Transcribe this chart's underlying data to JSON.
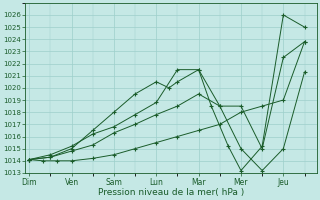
{
  "xlabel": "Pression niveau de la mer( hPa )",
  "background_color": "#c5e8e5",
  "grid_color": "#9ecfcb",
  "line_color": "#1a5c2a",
  "x_labels": [
    "Dim",
    "Ven",
    "Sam",
    "Lun",
    "Mar",
    "Mer",
    "Jeu"
  ],
  "ylim": [
    1013,
    1027
  ],
  "yticks": [
    1013,
    1014,
    1015,
    1016,
    1017,
    1018,
    1019,
    1020,
    1021,
    1022,
    1023,
    1024,
    1025,
    1026
  ],
  "series": [
    {
      "x": [
        0,
        0.33,
        0.66,
        1.0,
        1.5,
        2.0,
        2.5,
        3.0,
        3.5,
        4.0,
        4.5,
        5.0,
        5.5,
        6.0,
        6.5
      ],
      "y": [
        1014.1,
        1014.0,
        1014.0,
        1014.0,
        1014.2,
        1014.5,
        1015.0,
        1015.5,
        1016.0,
        1016.5,
        1017.0,
        1018.0,
        1018.5,
        1019.0,
        1023.8
      ]
    },
    {
      "x": [
        0,
        0.5,
        1.0,
        1.5,
        2.0,
        2.5,
        3.0,
        3.5,
        4.0,
        4.5,
        5.0,
        5.5,
        6.0,
        6.5
      ],
      "y": [
        1014.1,
        1014.3,
        1014.8,
        1015.3,
        1016.3,
        1017.0,
        1017.8,
        1018.5,
        1019.5,
        1018.5,
        1018.5,
        1015.0,
        1022.5,
        1023.8
      ]
    },
    {
      "x": [
        0,
        0.5,
        1.0,
        1.5,
        2.0,
        2.5,
        3.0,
        3.3,
        3.5,
        4.0,
        4.5,
        5.0,
        5.5,
        6.0,
        6.5
      ],
      "y": [
        1014.1,
        1014.3,
        1015.0,
        1016.5,
        1018.0,
        1019.5,
        1020.5,
        1020.0,
        1020.5,
        1021.5,
        1018.5,
        1015.0,
        1013.2,
        1015.0,
        1021.3
      ]
    },
    {
      "x": [
        0,
        0.5,
        1.0,
        1.5,
        2.0,
        2.5,
        3.0,
        3.5,
        4.0,
        4.3,
        4.7,
        5.0,
        5.5,
        6.0,
        6.5
      ],
      "y": [
        1014.1,
        1014.5,
        1015.2,
        1016.2,
        1016.8,
        1017.8,
        1018.8,
        1021.5,
        1021.5,
        1018.5,
        1015.2,
        1013.2,
        1015.2,
        1026.0,
        1025.0
      ]
    }
  ]
}
